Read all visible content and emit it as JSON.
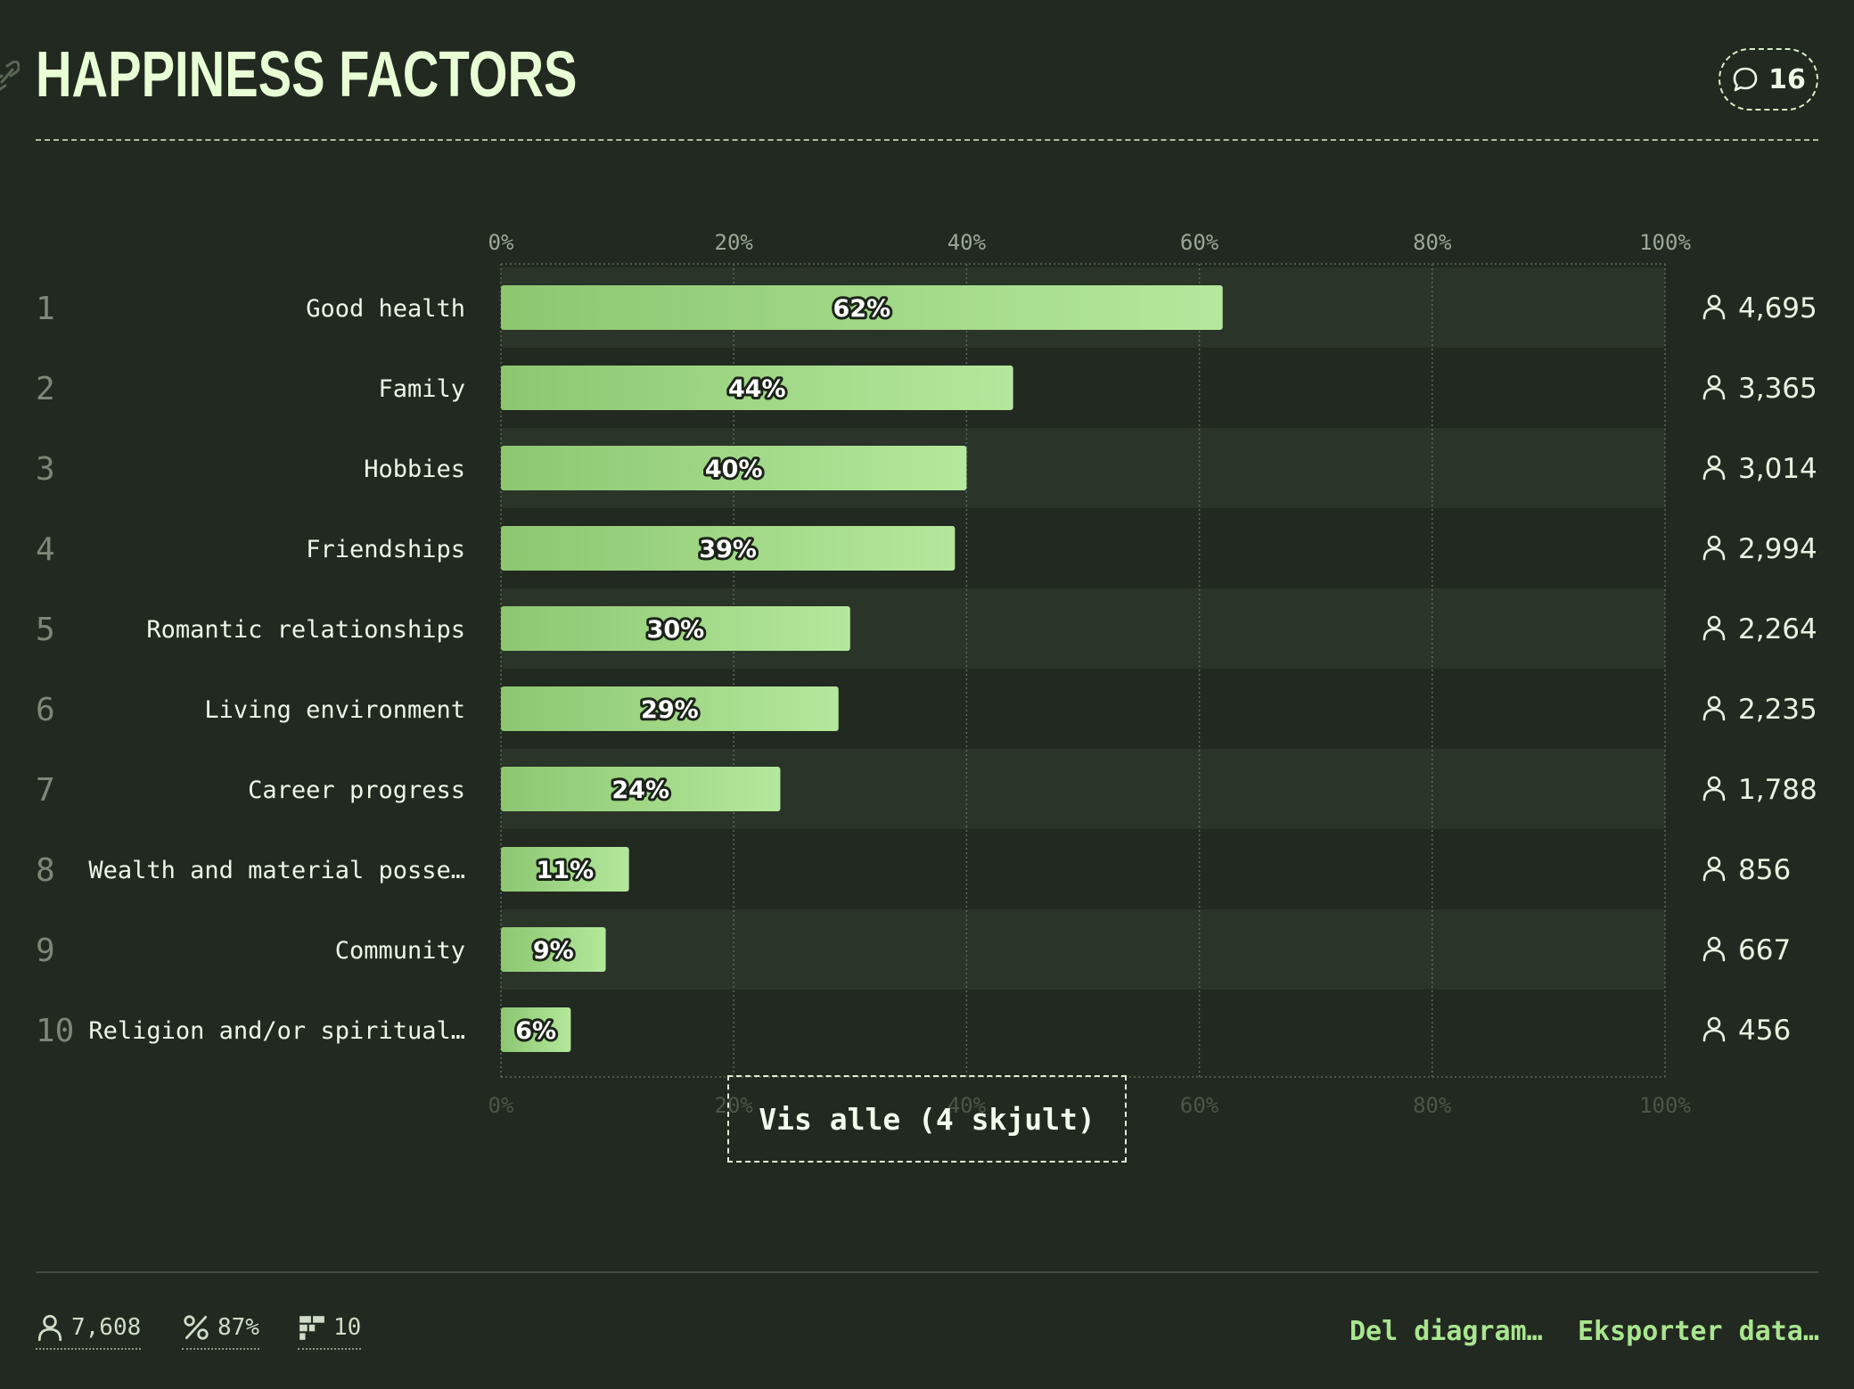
{
  "header": {
    "title": "HAPPINESS FACTORS",
    "comment_count": "16"
  },
  "colors": {
    "background": "#222920",
    "bar_start": "#8cc770",
    "bar_end": "#b4e89c",
    "row_alt": "#2b3429",
    "accent": "#a9e58f"
  },
  "icons": {
    "link": "link-icon",
    "comment": "comment-icon",
    "person": "person-icon",
    "percent": "percent-icon",
    "options": "options-icon"
  },
  "show_all_label": "Vis alle (4 skjult)",
  "footer": {
    "respondents": "7,608",
    "response_rate": "87%",
    "options": "10",
    "share_label": "Del diagram…",
    "export_label": "Eksporter data…"
  },
  "chart_data": {
    "type": "bar",
    "orientation": "horizontal",
    "xlim": [
      0,
      100
    ],
    "x_ticks": [
      "0%",
      "20%",
      "40%",
      "60%",
      "80%",
      "100%"
    ],
    "grid": true,
    "ranks": [
      "1",
      "2",
      "3",
      "4",
      "5",
      "6",
      "7",
      "8",
      "9",
      "10"
    ],
    "categories": [
      "Good health",
      "Family",
      "Hobbies",
      "Friendships",
      "Romantic relationships",
      "Living environment",
      "Career progress",
      "Wealth and material posse…",
      "Community",
      "Religion and/or spiritual…"
    ],
    "values": [
      62,
      44,
      40,
      39,
      30,
      29,
      24,
      11,
      9,
      6
    ],
    "value_labels": [
      "62%",
      "44%",
      "40%",
      "39%",
      "30%",
      "29%",
      "24%",
      "11%",
      "9%",
      "6%"
    ],
    "counts": [
      "4,695",
      "3,365",
      "3,014",
      "2,994",
      "2,264",
      "2,235",
      "1,788",
      "856",
      "667",
      "456"
    ]
  }
}
